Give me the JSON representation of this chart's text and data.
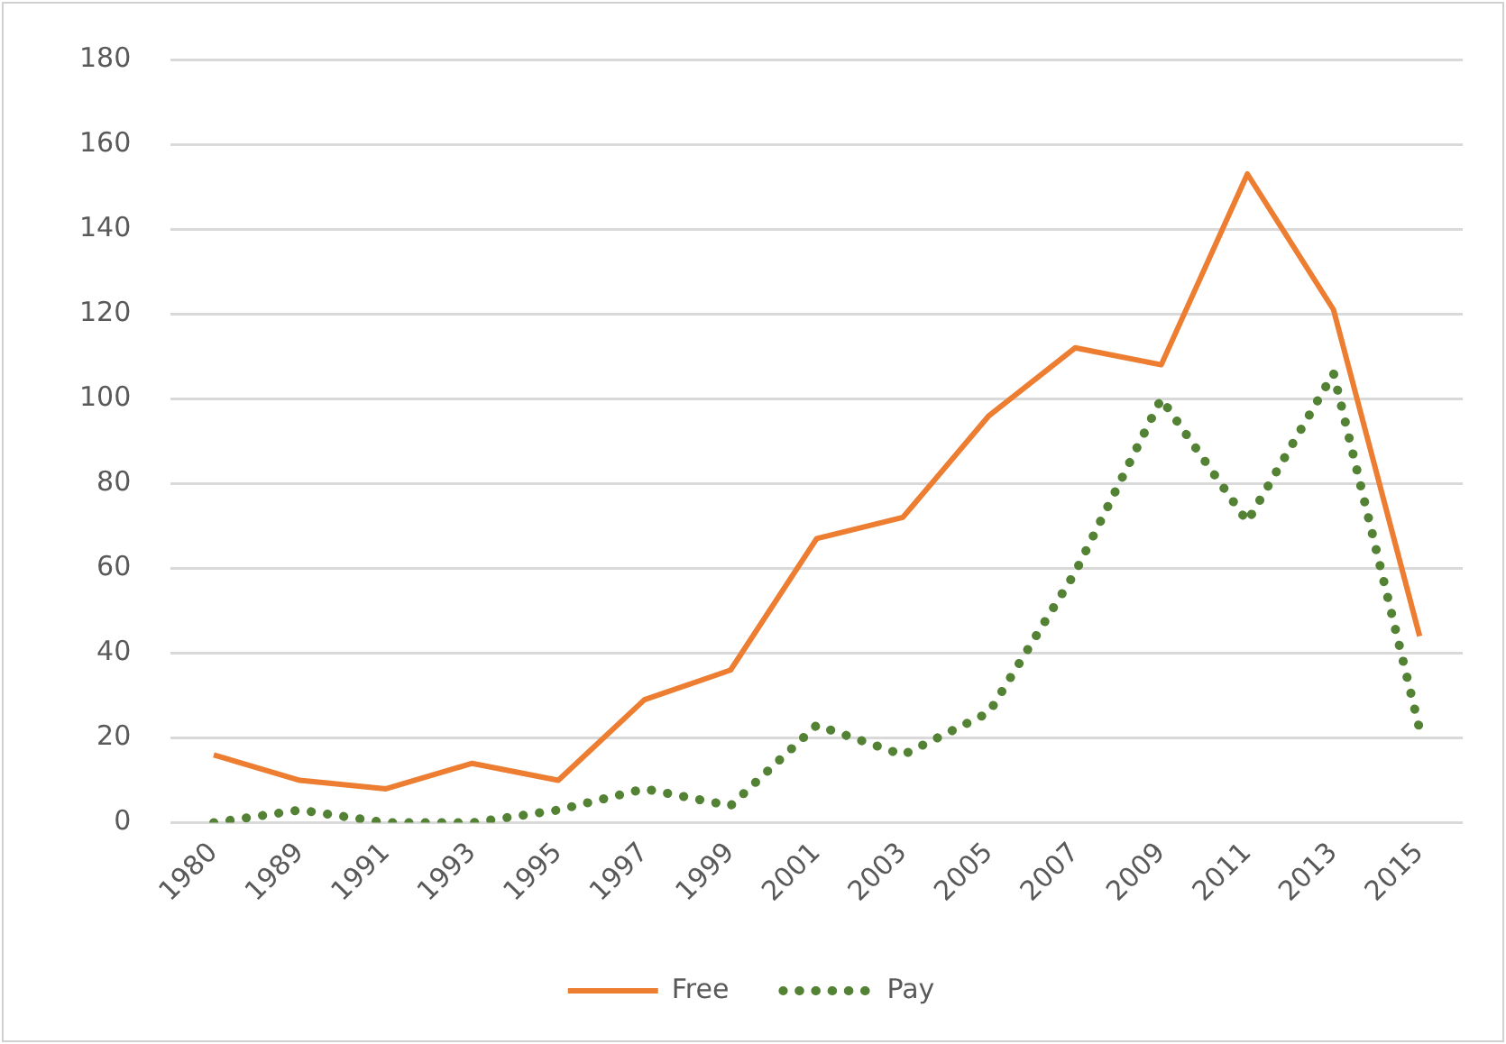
{
  "chart_data": {
    "type": "line",
    "categories": [
      "1980",
      "1989",
      "1991",
      "1993",
      "1995",
      "1997",
      "1999",
      "2001",
      "2003",
      "2005",
      "2007",
      "2009",
      "2011",
      "2013",
      "2015"
    ],
    "series": [
      {
        "name": "Free",
        "color": "#ed7d31",
        "line_style": "solid",
        "values": [
          16,
          10,
          8,
          14,
          10,
          29,
          36,
          67,
          72,
          96,
          112,
          108,
          153,
          121,
          44
        ]
      },
      {
        "name": "Pay",
        "color": "#548235",
        "line_style": "dotted",
        "values": [
          0,
          3,
          0,
          0,
          3,
          8,
          4,
          23,
          16,
          26,
          59,
          100,
          71,
          106,
          22
        ]
      }
    ],
    "ylim": [
      0,
      180
    ],
    "yticks": [
      0,
      20,
      40,
      60,
      80,
      100,
      120,
      140,
      160,
      180
    ],
    "grid": "y",
    "legend": "bottom",
    "marker": "none"
  }
}
